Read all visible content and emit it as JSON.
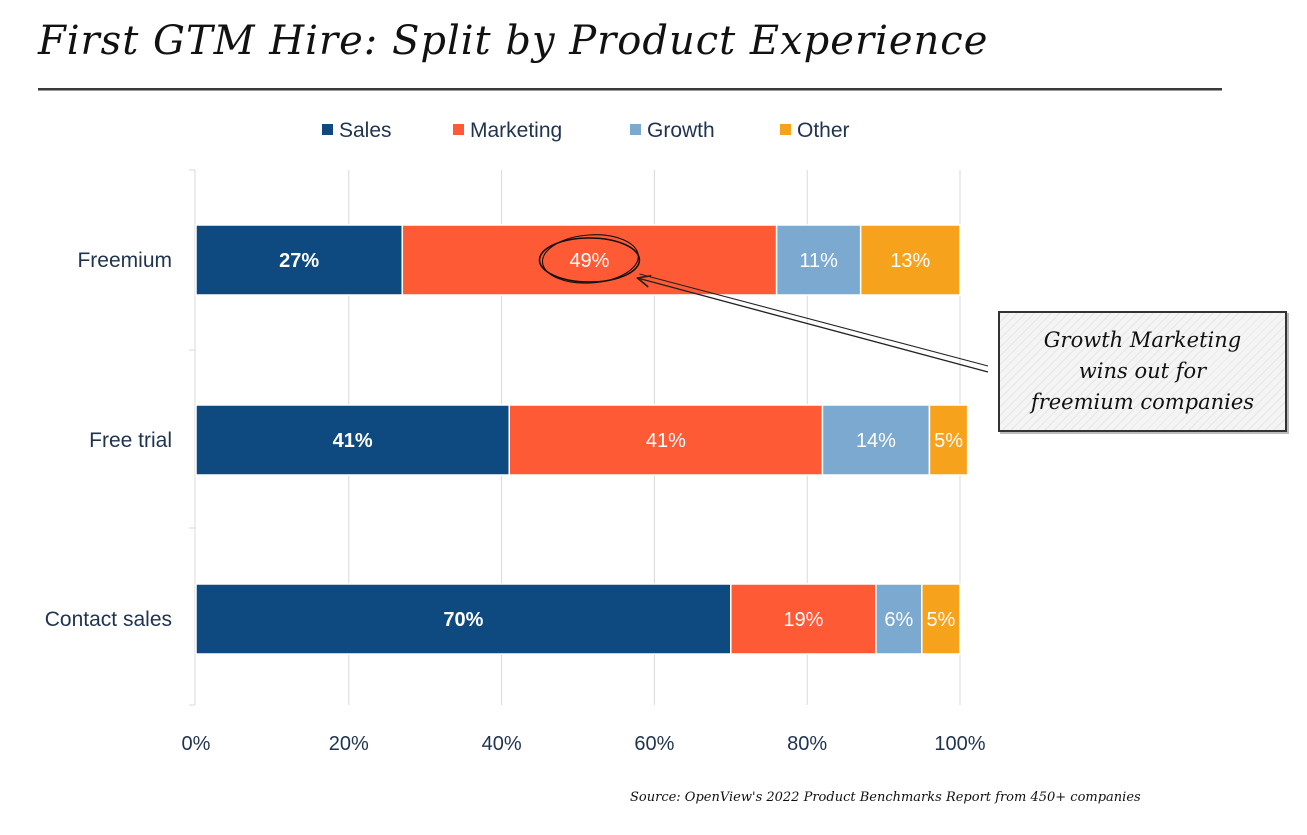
{
  "title": "First GTM Hire: Split by Product Experience",
  "source_note": "Source: OpenView's 2022 Product Benchmarks Report from 450+ companies",
  "callout": {
    "lines": [
      "Growth Marketing",
      "wins out for",
      "freemium companies"
    ]
  },
  "chart_data": {
    "type": "bar",
    "orientation": "horizontal",
    "stacked": true,
    "title": "First GTM Hire: Split by Product Experience",
    "categories": [
      "Freemium",
      "Free trial",
      "Contact sales"
    ],
    "series": [
      {
        "name": "Sales",
        "color": "#0e4a80",
        "values": [
          27,
          41,
          70
        ],
        "labels": [
          "27%",
          "41%",
          "70%"
        ]
      },
      {
        "name": "Marketing",
        "color": "#ff5a36",
        "values": [
          49,
          41,
          19
        ],
        "labels": [
          "49%",
          "41%",
          "19%"
        ]
      },
      {
        "name": "Growth",
        "color": "#7ba9cf",
        "values": [
          11,
          14,
          6
        ],
        "labels": [
          "11%",
          "14%",
          "6%"
        ]
      },
      {
        "name": "Other",
        "color": "#f7a21c",
        "values": [
          13,
          5,
          5
        ],
        "labels": [
          "13%",
          "5%",
          "5%"
        ]
      }
    ],
    "xlim": [
      0,
      100
    ],
    "xticks": [
      0,
      20,
      40,
      60,
      80,
      100
    ],
    "xtick_labels": [
      "0%",
      "20%",
      "40%",
      "60%",
      "80%",
      "100%"
    ],
    "grid": true,
    "legend": "top",
    "highlight": {
      "category": "Freemium",
      "series": "Marketing"
    }
  }
}
